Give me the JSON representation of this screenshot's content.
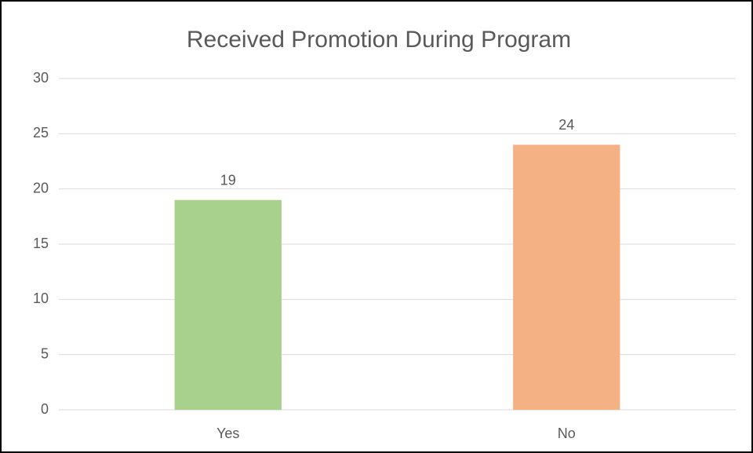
{
  "chart_data": {
    "type": "bar",
    "title": "Received Promotion During Program",
    "categories": [
      "Yes",
      "No"
    ],
    "values": [
      19,
      24
    ],
    "colors": [
      "#a9d18e",
      "#f4b183"
    ],
    "ylim": [
      0,
      30
    ],
    "yticks": [
      0,
      5,
      10,
      15,
      20,
      25,
      30
    ],
    "grid": true,
    "data_labels": true
  }
}
